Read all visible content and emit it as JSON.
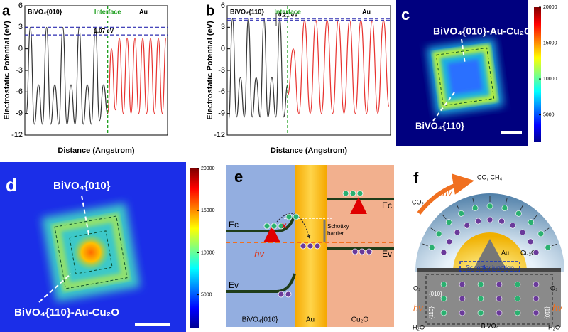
{
  "panel_labels": [
    "a",
    "b",
    "c",
    "d",
    "e",
    "f"
  ],
  "chart_data": [
    {
      "type": "line",
      "ylabel": "Electrostatic Potential (eV)",
      "xlabel": "Distance (Angstrom)",
      "ylim": [
        -12,
        6
      ],
      "yticks": [
        -12,
        -9,
        -6,
        -3,
        0,
        3,
        6
      ],
      "divider_label": "Interface",
      "reference_lines": [
        3,
        1.93
      ],
      "annotation": "1.07 eV",
      "series": [
        {
          "name": "BiVO₄{010}",
          "color": "#333333",
          "values": [
            -9,
            3,
            -10.5,
            -5,
            -10.5,
            3,
            -10.5,
            -5,
            -10.5,
            3,
            -10.5,
            -5,
            -10.5,
            3,
            -10.5,
            -5,
            -10.5,
            3,
            -10,
            -5,
            -9
          ]
        },
        {
          "name": "Au",
          "color": "#e8322e",
          "values": [
            -9,
            0,
            -8.5,
            1.5,
            -9,
            1.5,
            -9,
            1.5,
            -9,
            1.5,
            -9,
            1.5,
            -9,
            1.5,
            -9,
            1.5
          ]
        }
      ]
    },
    {
      "type": "line",
      "ylabel": "Electrostatic Potential (eV)",
      "xlabel": "Distance (Angstrom)",
      "ylim": [
        -12,
        6
      ],
      "yticks": [
        -12,
        -9,
        -6,
        -3,
        0,
        3,
        6
      ],
      "divider_label": "Interface",
      "reference_lines": [
        4.2,
        3.99
      ],
      "annotation": "0.21 eV",
      "series": [
        {
          "name": "BiVO₄{110}",
          "color": "#333333",
          "values": [
            -10,
            4.2,
            -9.5,
            -4,
            -9.5,
            4.2,
            -9.5,
            -4,
            -9.5,
            4.2,
            -9.5,
            -4,
            -9.5,
            4.2,
            -9.5,
            -5
          ]
        },
        {
          "name": "Au",
          "color": "#e8322e",
          "values": [
            -6.5,
            0,
            -9,
            4,
            -9,
            4,
            -9,
            4,
            -9,
            4,
            -9,
            4,
            -9,
            4,
            -9,
            4,
            -9,
            4,
            -8
          ]
        }
      ]
    },
    {
      "type": "heatmap",
      "title": "BiVO₄{010}-Au-Cu₂O",
      "annotations": [
        "BiVO₄{110}"
      ],
      "zlim": [
        1200,
        20000
      ],
      "zticks": [
        5000,
        10000,
        15000,
        20000
      ]
    },
    {
      "type": "heatmap",
      "title": "BiVO₄{010}",
      "annotations": [
        "BiVO₄{110}-Au-Cu₂O"
      ],
      "zlim": [
        1000,
        20000
      ],
      "zticks": [
        5000,
        10000,
        15000,
        20000
      ]
    }
  ],
  "diagram_e": {
    "ec_left": "Ec",
    "ev_left": "Ev",
    "photon": "hv",
    "blocked": "x",
    "barrier": [
      "Schottky",
      "barrier"
    ],
    "ec_right": "Ec",
    "ev_right": "Ev",
    "regions": [
      "BiVO₄{010}",
      "Au",
      "Cu₂O"
    ]
  },
  "diagram_f": {
    "products": "CO, CH₄",
    "photon_top": "hv",
    "reactant": "CO₂",
    "au": "Au",
    "shell": "Cu₂O",
    "o2": [
      "O₂",
      "O₂"
    ],
    "junction": "Schottky junction",
    "facet_top": "{010}",
    "photon_sides": [
      "hv",
      "hv"
    ],
    "water": [
      "H₂O",
      "H₂O"
    ],
    "base": "BiVO₄",
    "facet_sides": [
      "{110}",
      "{110}"
    ]
  }
}
